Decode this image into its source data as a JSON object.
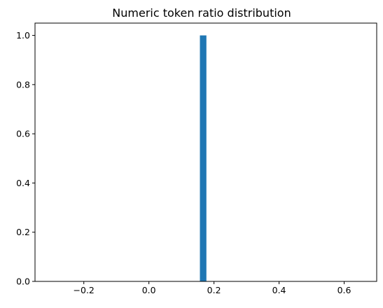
{
  "chart_data": {
    "type": "bar",
    "title": "Numeric token ratio distribution",
    "xlabel": "",
    "ylabel": "",
    "bins": [
      {
        "x0": 0.1567,
        "x1": 0.1767,
        "value": 1.0
      }
    ],
    "xlim": [
      -0.35,
      0.7
    ],
    "ylim": [
      0.0,
      1.05
    ],
    "x_ticks": [
      -0.2,
      0.0,
      0.2,
      0.4,
      0.6
    ],
    "x_tick_labels": [
      "−0.2",
      "0.0",
      "0.2",
      "0.4",
      "0.6"
    ],
    "y_ticks": [
      0.0,
      0.2,
      0.4,
      0.6,
      0.8,
      1.0
    ],
    "y_tick_labels": [
      "0.0",
      "0.2",
      "0.4",
      "0.6",
      "0.8",
      "1.0"
    ],
    "grid": false,
    "bar_color": "#1f77b4"
  }
}
